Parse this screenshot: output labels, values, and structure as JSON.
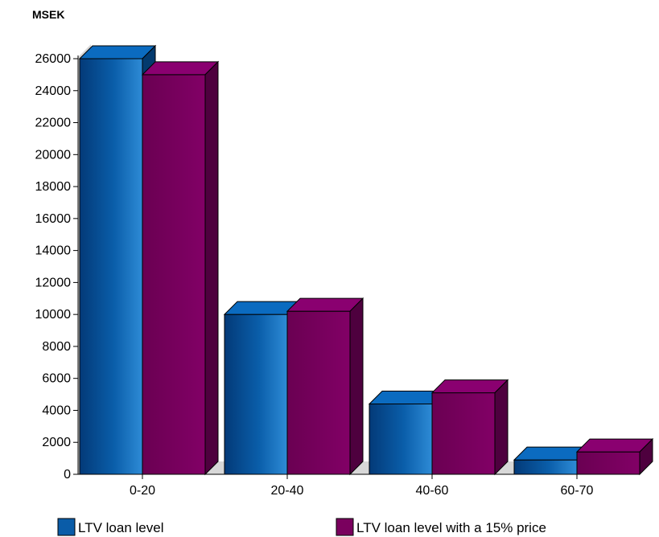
{
  "chart_data": {
    "type": "bar",
    "ylabel": "MSEK",
    "xlabel": "",
    "categories": [
      "0-20",
      "20-40",
      "40-60",
      "60-70"
    ],
    "series": [
      {
        "name": "LTV loan level",
        "values": [
          26000,
          10000,
          4400,
          900
        ],
        "color": "#0A5CA8"
      },
      {
        "name": "LTV loan level with a 15% price",
        "values": [
          25000,
          10200,
          5100,
          1400
        ],
        "color": "#7A005E"
      }
    ],
    "ylim": [
      0,
      26000
    ],
    "yticks": [
      0,
      2000,
      4000,
      6000,
      8000,
      10000,
      12000,
      14000,
      16000,
      18000,
      20000,
      22000,
      24000,
      26000
    ],
    "grid": false,
    "legend": "bottom",
    "style": "3d"
  }
}
